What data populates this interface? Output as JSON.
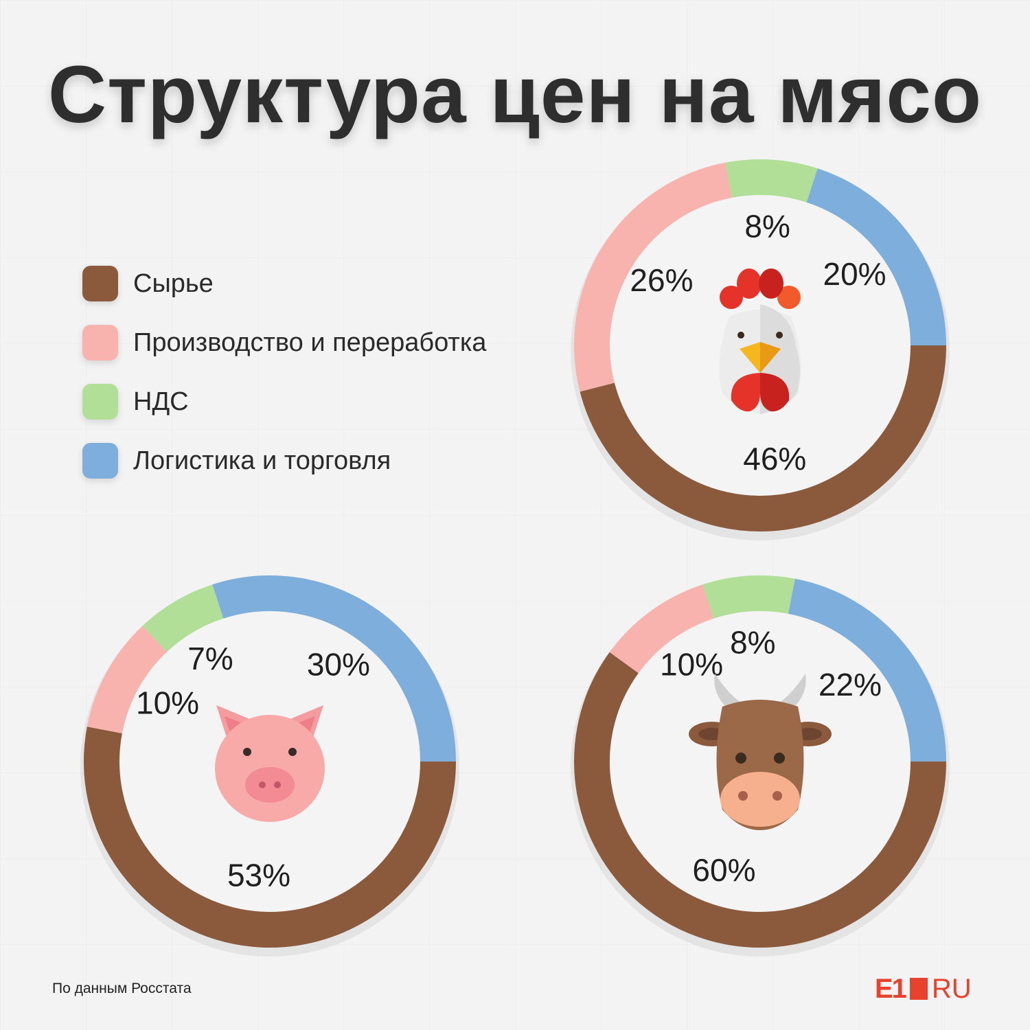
{
  "title": "Структура цен на мясо",
  "legend": [
    {
      "label": "Сырье",
      "color": "#8b5a3c"
    },
    {
      "label": "Производство и переработка",
      "color": "#f9b3ae"
    },
    {
      "label": "НДС",
      "color": "#b1df97"
    },
    {
      "label": "Логистика и торговля",
      "color": "#7eaedb"
    }
  ],
  "source": "По данным Росстата",
  "logo": {
    "left": "E1",
    "right": "RU"
  },
  "chart_data": [
    {
      "type": "pie",
      "subject": "chicken",
      "icon": "chicken-icon",
      "categories": [
        "Сырье",
        "Производство и переработка",
        "НДС",
        "Логистика и торговля"
      ],
      "values": [
        46,
        26,
        8,
        20
      ],
      "labels": [
        "46%",
        "26%",
        "8%",
        "20%"
      ]
    },
    {
      "type": "pie",
      "subject": "pig",
      "icon": "pig-icon",
      "categories": [
        "Сырье",
        "Производство и переработка",
        "НДС",
        "Логистика и торговля"
      ],
      "values": [
        53,
        10,
        7,
        30
      ],
      "labels": [
        "53%",
        "10%",
        "7%",
        "30%"
      ]
    },
    {
      "type": "pie",
      "subject": "cow",
      "icon": "cow-icon",
      "categories": [
        "Сырье",
        "Производство и переработка",
        "НДС",
        "Логистика и торговля"
      ],
      "values": [
        60,
        10,
        8,
        22
      ],
      "labels": [
        "60%",
        "10%",
        "8%",
        "22%"
      ]
    }
  ]
}
